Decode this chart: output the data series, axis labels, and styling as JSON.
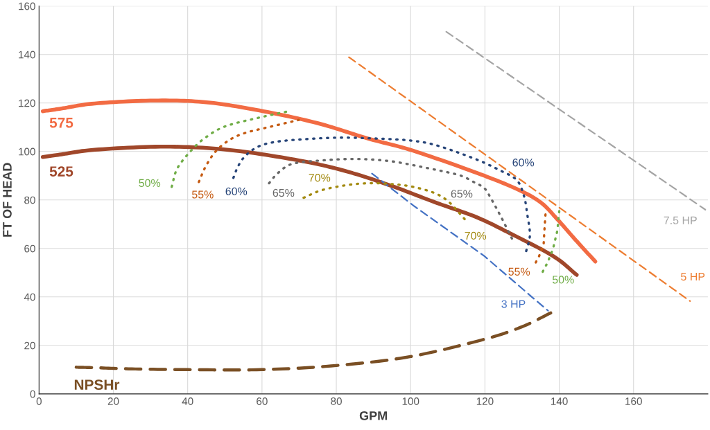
{
  "chart_data": {
    "type": "line",
    "xlabel": "GPM",
    "ylabel": "FT OF HEAD",
    "xlim": [
      0,
      180
    ],
    "ylim": [
      0,
      160
    ],
    "xticks": [
      0,
      20,
      40,
      60,
      80,
      100,
      120,
      140,
      160
    ],
    "yticks": [
      0,
      20,
      40,
      60,
      80,
      100,
      120,
      140,
      160
    ],
    "grid": true,
    "marker": "none",
    "series": [
      {
        "color": "#f26b43",
        "line_style": "solid",
        "x": [
          1,
          6,
          15,
          31,
          45,
          59.3,
          74.9,
          88.4,
          100.7,
          117.9,
          128.6,
          135,
          139.5,
          144.4,
          149.7
        ],
        "values": [
          116.6,
          117.7,
          119.8,
          121,
          120.3,
          116.9,
          111.7,
          105.4,
          100.3,
          91.1,
          84.5,
          79,
          72,
          63.5,
          54.6
        ]
      },
      {
        "color": "#a0472a",
        "line_style": "solid",
        "x": [
          1,
          6,
          15,
          34,
          51.4,
          69.9,
          82.3,
          94.5,
          106.8,
          117.4,
          125.9,
          138.3,
          144.7
        ],
        "values": [
          97.7,
          98.8,
          100.7,
          102,
          100.6,
          96.3,
          92,
          86,
          78.9,
          73.1,
          66.9,
          56.9,
          49.1
        ]
      },
      {
        "color": "#7a4f24",
        "line_style": "dashed",
        "x": [
          10,
          15,
          25,
          40,
          60,
          80,
          100,
          120,
          130,
          137.7
        ],
        "values": [
          11,
          10.8,
          10.3,
          10,
          10,
          11.7,
          15.4,
          22.6,
          27.7,
          33.4
        ]
      },
      {
        "color": "#4472c4",
        "line_style": "dashed",
        "x": [
          89.6,
          101,
          119.8,
          133,
          137
        ],
        "values": [
          90.9,
          77.4,
          56.9,
          39.5,
          34.3
        ]
      },
      {
        "color": "#ed7d31",
        "line_style": "dashed",
        "x": [
          83.4,
          170,
          175.2
        ],
        "values": [
          138.9,
          44,
          38.3
        ]
      },
      {
        "color": "#a5a5a5",
        "line_style": "dashed",
        "x": [
          109.6,
          172.6,
          179.3
        ],
        "values": [
          149.4,
          83.1,
          76
        ]
      },
      {
        "color": "#70ad47",
        "line_style": "dotted",
        "x": [
          35.7,
          37.2,
          40.9,
          44.5,
          50,
          59.3,
          67.2
        ],
        "values": [
          85.4,
          93,
          100.3,
          105.4,
          110.3,
          114,
          116.6
        ]
      },
      {
        "color": "#70ad47",
        "line_style": "dotted",
        "x": [
          140,
          139.5,
          138.3,
          136.8,
          135.1
        ],
        "values": [
          75.4,
          67.4,
          59.7,
          54,
          49.1
        ]
      },
      {
        "color": "#c55a11",
        "line_style": "dotted",
        "x": [
          43,
          44.9,
          47.7,
          51.4,
          55.6,
          62.5,
          69.9
        ],
        "values": [
          87.4,
          94,
          100.3,
          104.9,
          107.7,
          110.3,
          113
        ]
      },
      {
        "color": "#c55a11",
        "line_style": "dotted",
        "x": [
          136.3,
          136,
          135.8,
          134.6,
          133.6
        ],
        "values": [
          74,
          67.4,
          61.7,
          56.9,
          54
        ]
      },
      {
        "color": "#264478",
        "line_style": "dotted",
        "x": [
          52.3,
          53.6,
          55.6,
          59,
          63.8,
          71.7,
          81,
          89.6,
          99.4,
          106.8,
          117.4,
          123.5,
          128.5,
          130.5,
          131.4,
          132.1,
          131
        ],
        "values": [
          89.1,
          94,
          98.3,
          102,
          104,
          105.1,
          105.7,
          105.4,
          104.6,
          102.6,
          96.9,
          92.6,
          88.3,
          81.7,
          74,
          65.4,
          58.3
        ]
      },
      {
        "color": "#676767",
        "line_style": "dotted",
        "x": [
          61.9,
          64.3,
          68.2,
          76,
          85.2,
          94.5,
          103.7,
          112.9,
          116.6,
          119.8,
          121.6,
          124,
          125.9,
          127.5
        ],
        "values": [
          86.9,
          91.1,
          94.9,
          96.3,
          96.9,
          96,
          93.4,
          90.3,
          87.7,
          84.9,
          80.7,
          74,
          68.3,
          63.4
        ]
      },
      {
        "color": "#a38a10",
        "line_style": "dotted",
        "x": [
          71.2,
          76,
          82.3,
          88.4,
          94.5,
          100.7,
          106.8,
          110.5,
          114.6
        ],
        "values": [
          80.9,
          84,
          86,
          86.9,
          86.6,
          85.4,
          82.6,
          78.9,
          72
        ]
      }
    ],
    "annotations": [
      {
        "text": "575",
        "x": 6,
        "y": 117.7
      },
      {
        "text": "525",
        "x": 6,
        "y": 98.8
      },
      {
        "text": "NPSHr",
        "x": 15,
        "y": 10.8
      },
      {
        "text": "50%",
        "x": 35.7,
        "y": 85.4
      },
      {
        "text": "55%",
        "x": 43,
        "y": 87.4
      },
      {
        "text": "60%",
        "x": 52.3,
        "y": 89.1
      },
      {
        "text": "65%",
        "x": 61.9,
        "y": 86.9
      },
      {
        "text": "70%",
        "x": 76,
        "y": 84
      },
      {
        "text": "65%",
        "x": 116.6,
        "y": 87.7
      },
      {
        "text": "60%",
        "x": 128.5,
        "y": 88.3
      },
      {
        "text": "70%",
        "x": 114.6,
        "y": 72
      },
      {
        "text": "55%",
        "x": 133.6,
        "y": 54
      },
      {
        "text": "50%",
        "x": 135.1,
        "y": 49.1
      },
      {
        "text": "3 HP",
        "x": 137,
        "y": 34.3
      },
      {
        "text": "5 HP",
        "x": 170,
        "y": 44
      },
      {
        "text": "7.5 HP",
        "x": 172.6,
        "y": 83.1
      }
    ]
  }
}
